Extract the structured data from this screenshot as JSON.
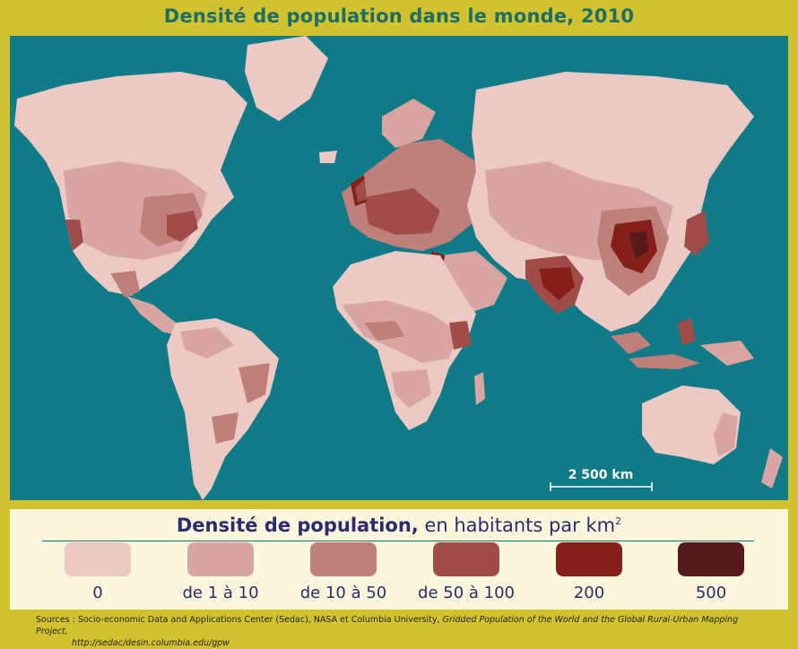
{
  "title": "Densité de population dans le monde, 2010",
  "scale": {
    "label": "2 500 km"
  },
  "legend": {
    "title_bold": "Densité de population,",
    "title_rest": "en habitants par km",
    "title_sup": "2",
    "classes": [
      {
        "label": "0",
        "color": "#ecc9c4"
      },
      {
        "label": "de 1 à 10",
        "color": "#d9a5a2"
      },
      {
        "label": "de 10 à 50",
        "color": "#bf7f7b"
      },
      {
        "label": "de 50 à 100",
        "color": "#a04d4a"
      },
      {
        "label": "200",
        "color": "#842019"
      },
      {
        "label": "500",
        "color": "#561a1e"
      }
    ]
  },
  "sources": {
    "text": "Sources : Socio-economic Data and Applications Center (Sedac), NASA et Columbia University,",
    "italic": "Gridded Population of the World and the Global Rural-Urban Mapping Project,",
    "url": "http://sedac/desin.columbia.edu/gpw"
  },
  "colors": {
    "ocean": "#0f7b86",
    "frame": "#d2c22e",
    "title": "#1b6e66",
    "legend_text": "#2c2c6c"
  }
}
